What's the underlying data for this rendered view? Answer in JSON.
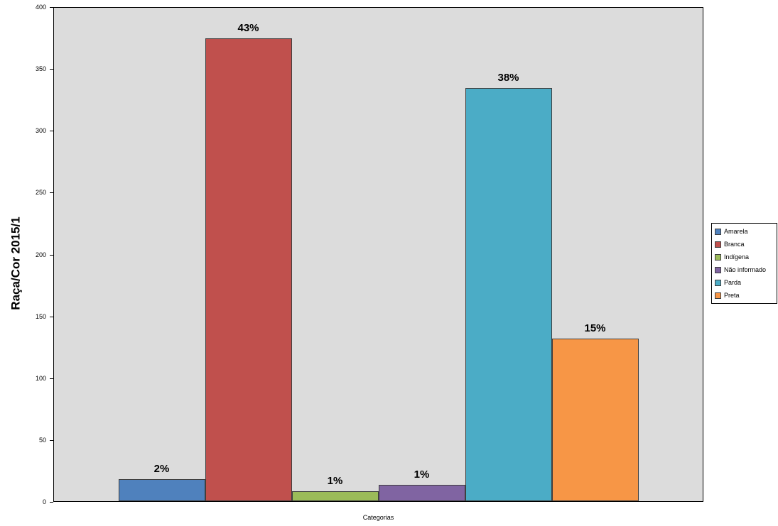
{
  "chart_data": {
    "type": "bar",
    "title": "",
    "ylabel": "Raça/Cor 2015/1",
    "xlabel": "Categorias",
    "ylim": [
      0,
      400
    ],
    "yticks": [
      0,
      50,
      100,
      150,
      200,
      250,
      300,
      350,
      400
    ],
    "grid": false,
    "legend_position": "right",
    "plot_background": "#dcdcdc",
    "series": [
      {
        "name": "Amarela",
        "value": 18,
        "label": "2%",
        "color": "#4f81bd"
      },
      {
        "name": "Branca",
        "value": 375,
        "label": "43%",
        "color": "#c0504d"
      },
      {
        "name": "Indígena",
        "value": 8,
        "label": "1%",
        "color": "#9bbb59"
      },
      {
        "name": "Não informado",
        "value": 13,
        "label": "1%",
        "color": "#8064a2"
      },
      {
        "name": "Parda",
        "value": 335,
        "label": "38%",
        "color": "#4bacc6"
      },
      {
        "name": "Preta",
        "value": 132,
        "label": "15%",
        "color": "#f79646"
      }
    ]
  }
}
